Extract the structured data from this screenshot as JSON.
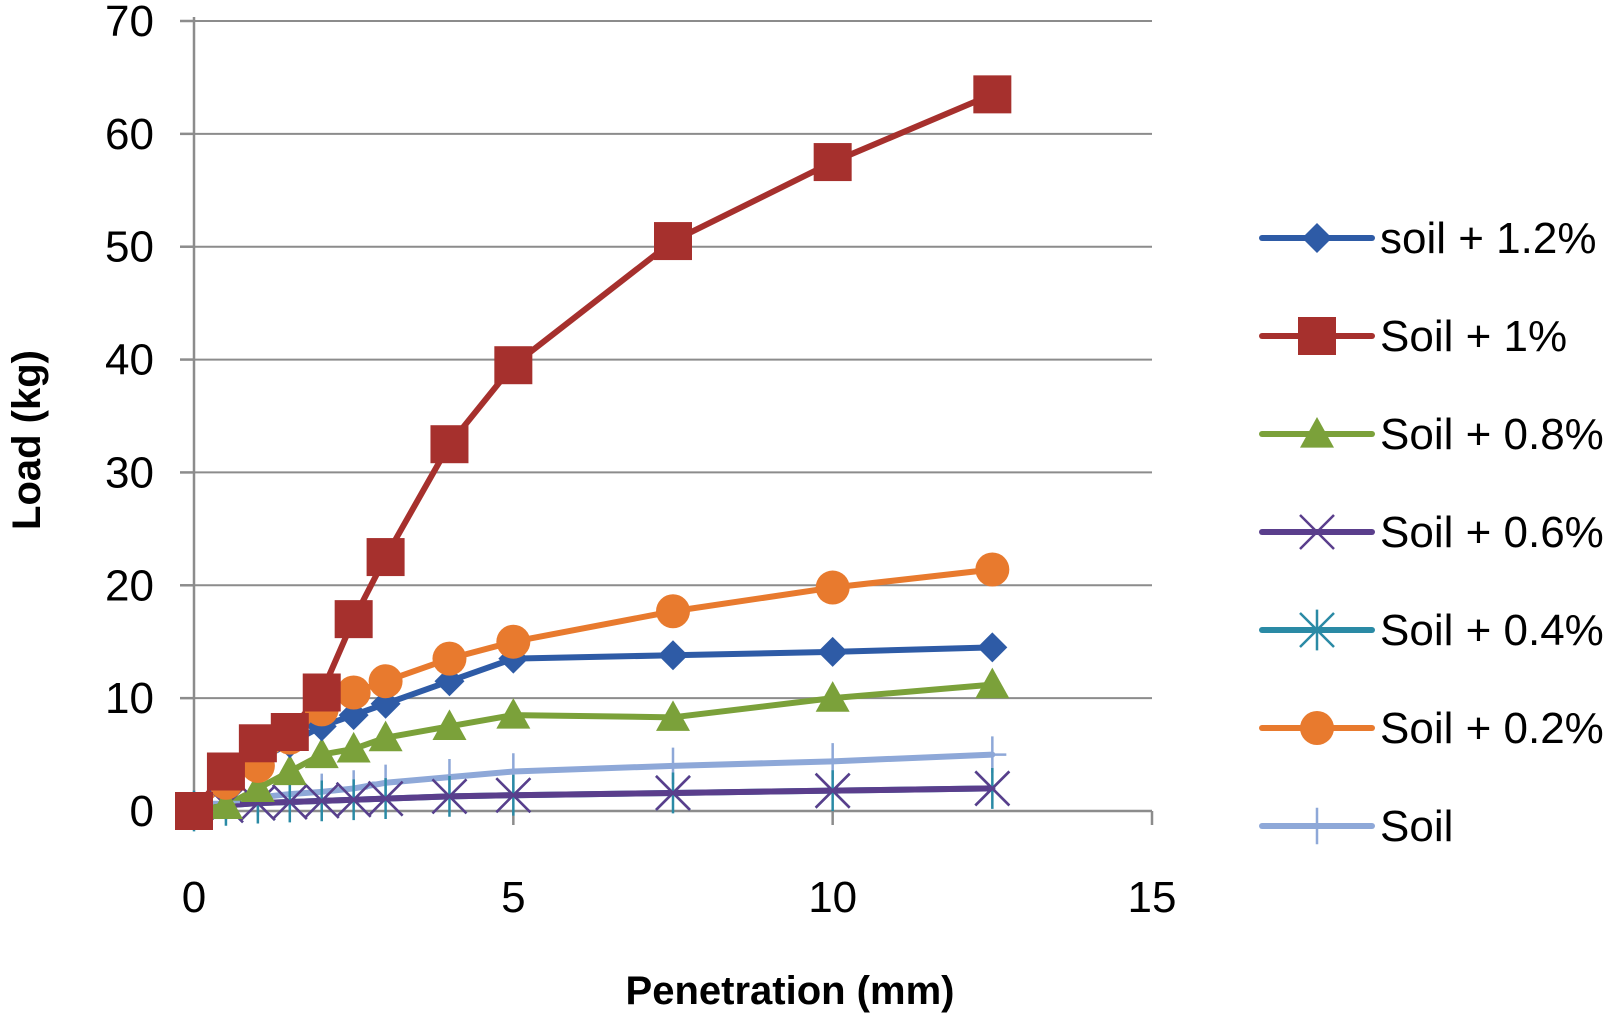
{
  "chart_data": {
    "type": "line",
    "title": "",
    "xlabel": "Penetration (mm)",
    "ylabel": "Load (kg)",
    "xlim": [
      0,
      15
    ],
    "ylim": [
      0,
      70
    ],
    "xticks": [
      0,
      5,
      10,
      15
    ],
    "yticks": [
      0,
      10,
      20,
      30,
      40,
      50,
      60,
      70
    ],
    "grid": "horizontal",
    "legend_position": "right",
    "series": [
      {
        "name": "soil + 1.2%",
        "color": "#2E5BA6",
        "marker": "diamond",
        "x": [
          0,
          0.5,
          1,
          1.5,
          2,
          2.5,
          3,
          4,
          5,
          7.5,
          10,
          12.5
        ],
        "y": [
          0,
          2.5,
          4.5,
          6,
          7.5,
          8.5,
          9.5,
          11.5,
          13.5,
          13.8,
          14.1,
          14.5
        ]
      },
      {
        "name": "Soil + 1%",
        "color": "#A6302D",
        "marker": "square",
        "x": [
          0,
          0.5,
          1,
          1.5,
          2,
          2.5,
          3,
          4,
          5,
          7.5,
          10,
          12.5
        ],
        "y": [
          0,
          3.5,
          6,
          7,
          10.5,
          17,
          22.5,
          32.5,
          39.5,
          50.5,
          57.5,
          63.5
        ]
      },
      {
        "name": "Soil + 0.8%",
        "color": "#7BA13A",
        "marker": "triangle",
        "x": [
          0,
          0.5,
          1,
          1.5,
          2,
          2.5,
          3,
          4,
          5,
          7.5,
          10,
          12.5
        ],
        "y": [
          0,
          0.5,
          2,
          3.5,
          5,
          5.5,
          6.5,
          7.5,
          8.5,
          8.3,
          10,
          11.2
        ]
      },
      {
        "name": "Soil + 0.6%",
        "color": "#5A3E8C",
        "marker": "x",
        "x": [
          0,
          0.5,
          1,
          1.5,
          2,
          2.5,
          3,
          4,
          5,
          7.5,
          10,
          12.5
        ],
        "y": [
          0,
          0.5,
          0.7,
          0.8,
          0.9,
          1,
          1.1,
          1.3,
          1.4,
          1.6,
          1.8,
          2
        ]
      },
      {
        "name": "Soil + 0.4%",
        "color": "#2A8AA5",
        "marker": "star",
        "x": [
          0,
          0.5,
          1,
          1.5,
          2,
          2.5,
          3,
          4,
          5,
          7.5,
          10,
          12.5
        ],
        "y": [
          0,
          0.5,
          0.7,
          0.8,
          0.9,
          1,
          1.1,
          1.3,
          1.4,
          1.6,
          1.8,
          2
        ]
      },
      {
        "name": "Soil + 0.2%",
        "color": "#E87A2E",
        "marker": "circle",
        "x": [
          0,
          0.5,
          1,
          1.5,
          2,
          2.5,
          3,
          4,
          5,
          7.5,
          10,
          12.5
        ],
        "y": [
          0,
          2.5,
          4,
          6.5,
          9,
          10.5,
          11.5,
          13.5,
          15,
          17.7,
          19.8,
          21.4
        ]
      },
      {
        "name": "Soil",
        "color": "#8EA8D8",
        "marker": "plus",
        "x": [
          0,
          0.5,
          1,
          1.5,
          2,
          2.5,
          3,
          4,
          5,
          7.5,
          10,
          12.5
        ],
        "y": [
          0,
          0.8,
          1.2,
          1.5,
          1.7,
          2,
          2.5,
          3,
          3.5,
          4,
          4.4,
          5
        ]
      }
    ]
  }
}
